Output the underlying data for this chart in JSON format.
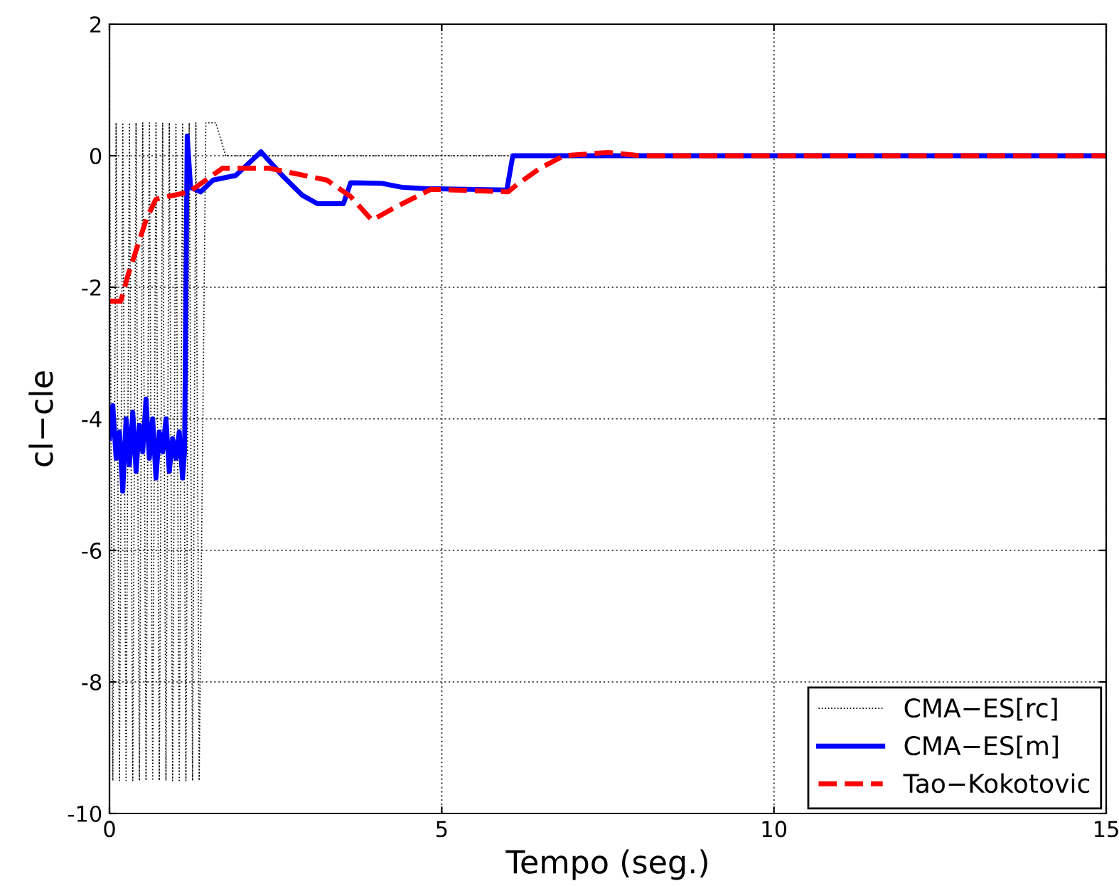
{
  "chart_data": {
    "type": "line",
    "xlabel": "Tempo (seg.)",
    "ylabel": "cl−cle",
    "xlim": [
      0,
      15
    ],
    "ylim": [
      -10,
      2
    ],
    "xticks": [
      0,
      5,
      10,
      15
    ],
    "yticks": [
      -10,
      -8,
      -6,
      -4,
      -2,
      0,
      2
    ],
    "grid": true,
    "legend": "bottom right",
    "series": [
      {
        "name": "CMA−ES[rc]",
        "color": "#000000",
        "line_style": "dotted",
        "x": [
          0,
          0.05,
          0.1,
          0.15,
          0.2,
          0.25,
          0.3,
          0.35,
          0.4,
          0.45,
          0.5,
          0.55,
          0.6,
          0.65,
          0.7,
          0.75,
          0.8,
          0.85,
          0.9,
          0.95,
          1.0,
          1.05,
          1.1,
          1.15,
          1.2,
          1.25,
          1.3,
          1.35,
          1.45,
          1.6,
          1.75,
          3,
          6,
          10,
          15
        ],
        "values": [
          0.5,
          -9.5,
          0.5,
          -9.5,
          0.5,
          -9.5,
          0.5,
          -9.5,
          0.5,
          -9.5,
          0.5,
          -9.5,
          0.5,
          -9.5,
          0.5,
          -9.5,
          0.5,
          -9.5,
          0.5,
          -9.5,
          0.5,
          -9.5,
          0.5,
          -9.5,
          0.5,
          -9.5,
          0.5,
          -9.5,
          0.5,
          0.5,
          0,
          0,
          0,
          0,
          0
        ]
      },
      {
        "name": "CMA−ES[m]",
        "color": "#0000ff",
        "line_style": "solid",
        "x": [
          0,
          0.05,
          0.1,
          0.15,
          0.2,
          0.25,
          0.3,
          0.35,
          0.4,
          0.45,
          0.5,
          0.55,
          0.6,
          0.65,
          0.7,
          0.75,
          0.8,
          0.85,
          0.9,
          0.95,
          1.0,
          1.05,
          1.1,
          1.13,
          1.17,
          1.22,
          1.37,
          1.56,
          1.9,
          2.28,
          2.6,
          2.9,
          3.13,
          3.52,
          3.63,
          4.1,
          4.4,
          4.75,
          5.98,
          6.07,
          7,
          8,
          9,
          10,
          11,
          12,
          13,
          14,
          15
        ],
        "values": [
          -4.3,
          -3.8,
          -4.6,
          -4.2,
          -5.1,
          -4.0,
          -4.7,
          -3.9,
          -4.8,
          -4.1,
          -4.5,
          -3.7,
          -4.6,
          -4.0,
          -4.9,
          -4.2,
          -4.5,
          -4.0,
          -4.8,
          -4.3,
          -4.6,
          -4.2,
          -4.9,
          -4.5,
          0.3,
          -0.48,
          -0.55,
          -0.37,
          -0.3,
          0.06,
          -0.3,
          -0.6,
          -0.73,
          -0.73,
          -0.41,
          -0.42,
          -0.48,
          -0.5,
          -0.52,
          0,
          0,
          0,
          0,
          0,
          0,
          0,
          0,
          0,
          0
        ]
      },
      {
        "name": "Tao−Kokotovic",
        "color": "#ff0000",
        "line_style": "dashed",
        "x": [
          0,
          0.17,
          0.28,
          0.56,
          0.7,
          1.2,
          1.7,
          2.4,
          3.27,
          3.63,
          3.95,
          4.27,
          4.84,
          6.0,
          6.13,
          6.48,
          6.84,
          7.5,
          8,
          10,
          12,
          15
        ],
        "values": [
          -2.21,
          -2.21,
          -1.81,
          -0.95,
          -0.66,
          -0.55,
          -0.19,
          -0.19,
          -0.37,
          -0.62,
          -0.98,
          -0.8,
          -0.51,
          -0.55,
          -0.44,
          -0.19,
          0,
          0.05,
          0,
          0,
          0,
          0
        ]
      }
    ]
  }
}
